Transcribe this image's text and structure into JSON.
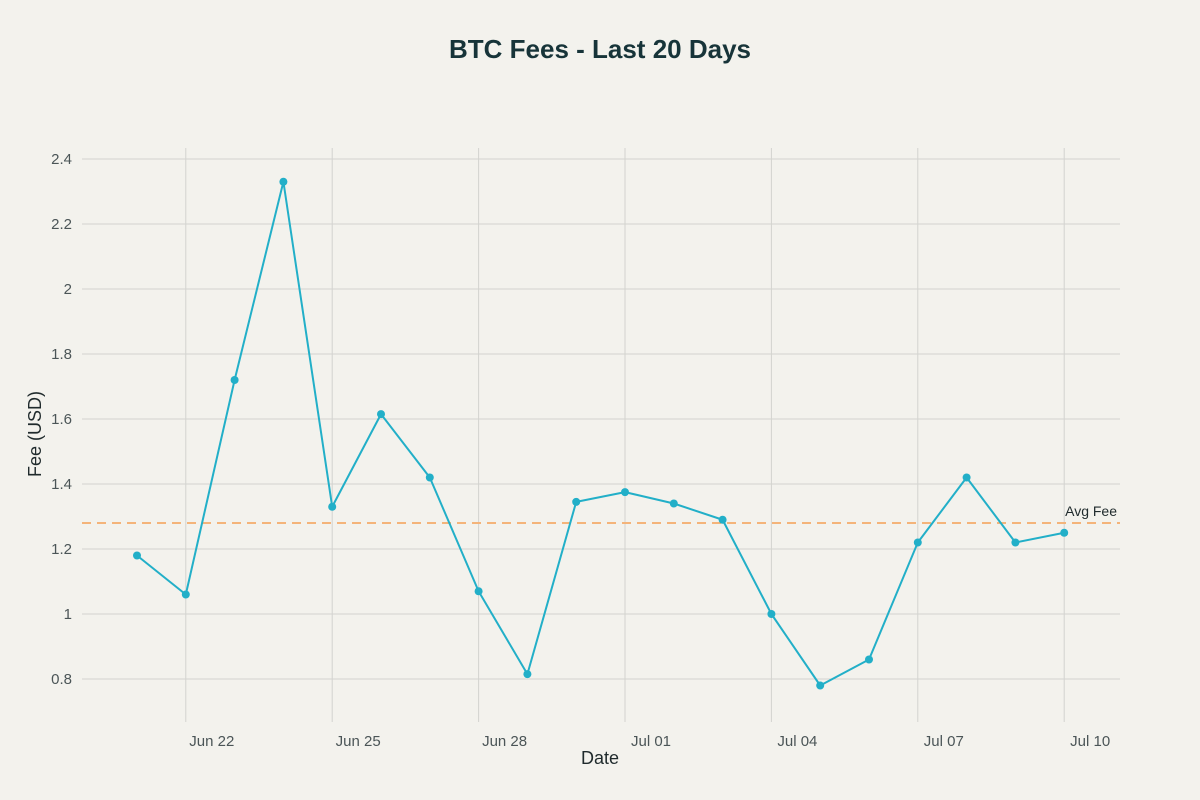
{
  "chart_data": {
    "type": "line",
    "title": "BTC Fees - Last 20 Days",
    "xlabel": "Date",
    "ylabel": "Fee (USD)",
    "ylim": [
      0.7,
      2.45
    ],
    "grid": true,
    "x": [
      "Jun 21",
      "Jun 22",
      "Jun 23",
      "Jun 24",
      "Jun 25",
      "Jun 26",
      "Jun 27",
      "Jun 28",
      "Jun 29",
      "Jun 30",
      "Jul 01",
      "Jul 02",
      "Jul 03",
      "Jul 04",
      "Jul 05",
      "Jul 06",
      "Jul 07",
      "Jul 08",
      "Jul 09",
      "Jul 10"
    ],
    "x_tick_labels": [
      "Jun 22",
      "Jun 25",
      "Jun 28",
      "Jul 01",
      "Jul 04",
      "Jul 07",
      "Jul 10"
    ],
    "y_tick_labels": [
      "0.8",
      "1",
      "1.2",
      "1.4",
      "1.6",
      "1.8",
      "2",
      "2.2",
      "2.4"
    ],
    "y_ticks": [
      0.8,
      1.0,
      1.2,
      1.4,
      1.6,
      1.8,
      2.0,
      2.2,
      2.4
    ],
    "series": [
      {
        "values": [
          1.18,
          1.06,
          1.72,
          2.33,
          1.33,
          1.615,
          1.42,
          1.07,
          0.815,
          1.345,
          1.375,
          1.34,
          1.29,
          1.0,
          0.78,
          0.86,
          1.22,
          1.42,
          1.22,
          1.25
        ],
        "color": "#22afc8"
      }
    ],
    "reference_line": {
      "label": "Avg Fee",
      "value": 1.28,
      "color": "#f4b47a",
      "style": "dashed"
    }
  },
  "colors": {
    "background": "#f3f2ed",
    "grid": "#d3d3cf",
    "line": "#22afc8",
    "avg": "#f4b47a"
  }
}
